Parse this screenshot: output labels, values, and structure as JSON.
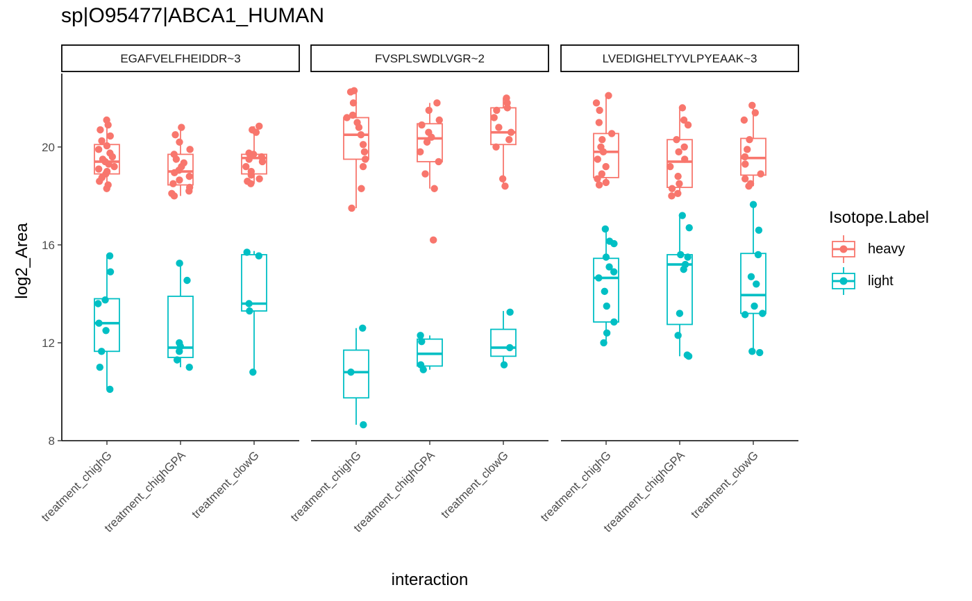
{
  "chart_data": {
    "type": "box",
    "title": "sp|O95477|ABCA1_HUMAN",
    "xlabel": "interaction",
    "ylabel": "log2_Area",
    "ylim": [
      8,
      23
    ],
    "yticks": [
      8,
      12,
      16,
      20
    ],
    "categories": [
      "treatment_chighG",
      "treatment_chighGPA",
      "treatment_clowG"
    ],
    "legend": {
      "title": "Isotope.Label",
      "position": "right",
      "items": [
        "heavy",
        "light"
      ]
    },
    "colors": {
      "heavy": "#F8766D",
      "light": "#00BFC4"
    },
    "panels": [
      {
        "name": "EGAFVELFHEIDDR~3",
        "series": [
          {
            "name": "heavy",
            "boxes": [
              {
                "min": 18.3,
                "q1": 18.9,
                "median": 19.4,
                "q3": 20.1,
                "max": 21.1,
                "points": [
                  18.3,
                  18.45,
                  18.6,
                  18.75,
                  18.9,
                  19.0,
                  19.1,
                  19.2,
                  19.3,
                  19.4,
                  19.5,
                  19.6,
                  19.75,
                  19.9,
                  20.05,
                  20.25,
                  20.45,
                  20.7,
                  20.9,
                  21.1
                ]
              },
              {
                "min": 18.0,
                "q1": 18.45,
                "median": 19.0,
                "q3": 19.7,
                "max": 20.8,
                "points": [
                  18.0,
                  18.1,
                  18.2,
                  18.35,
                  18.5,
                  18.65,
                  18.8,
                  18.95,
                  19.05,
                  19.2,
                  19.35,
                  19.5,
                  19.7,
                  19.9,
                  20.2,
                  20.5,
                  20.8
                ]
              },
              {
                "min": 18.5,
                "q1": 18.9,
                "median": 19.55,
                "q3": 19.7,
                "max": 20.85,
                "points": [
                  18.5,
                  18.6,
                  18.7,
                  18.85,
                  19.0,
                  19.2,
                  19.4,
                  19.5,
                  19.6,
                  19.7,
                  19.75,
                  20.6,
                  20.7,
                  20.85
                ]
              }
            ]
          },
          {
            "name": "light",
            "boxes": [
              {
                "min": 10.1,
                "q1": 11.65,
                "median": 12.8,
                "q3": 13.8,
                "max": 15.6,
                "points": [
                  10.1,
                  11.0,
                  11.65,
                  12.5,
                  12.8,
                  13.6,
                  13.75,
                  14.9,
                  15.55
                ]
              },
              {
                "min": 11.0,
                "q1": 11.4,
                "median": 11.8,
                "q3": 13.9,
                "max": 15.3,
                "points": [
                  11.0,
                  11.3,
                  11.65,
                  11.85,
                  12.0,
                  14.55,
                  15.25
                ]
              },
              {
                "min": 10.8,
                "q1": 13.3,
                "median": 13.6,
                "q3": 15.6,
                "max": 15.75,
                "points": [
                  10.8,
                  13.3,
                  13.6,
                  15.55,
                  15.7
                ]
              }
            ]
          }
        ]
      },
      {
        "name": "FVSPLSWDLVGR~2",
        "series": [
          {
            "name": "heavy",
            "boxes": [
              {
                "min": 17.5,
                "q1": 19.5,
                "median": 20.5,
                "q3": 21.2,
                "max": 22.3,
                "points": [
                  17.5,
                  18.3,
                  19.2,
                  19.5,
                  19.8,
                  20.1,
                  20.5,
                  20.8,
                  21.0,
                  21.2,
                  21.3,
                  21.8,
                  22.25,
                  22.3
                ]
              },
              {
                "min": 18.3,
                "q1": 19.4,
                "median": 20.35,
                "q3": 20.95,
                "max": 21.8,
                "points": [
                  16.2,
                  18.3,
                  18.9,
                  19.4,
                  19.8,
                  20.2,
                  20.4,
                  20.6,
                  20.9,
                  21.1,
                  21.5,
                  21.8
                ]
              },
              {
                "min": 18.4,
                "q1": 20.1,
                "median": 20.6,
                "q3": 21.6,
                "max": 22.0,
                "points": [
                  18.4,
                  18.7,
                  20.0,
                  20.3,
                  20.6,
                  20.8,
                  21.2,
                  21.5,
                  21.6,
                  21.8,
                  22.0
                ]
              }
            ]
          },
          {
            "name": "light",
            "boxes": [
              {
                "min": 8.65,
                "q1": 9.75,
                "median": 10.8,
                "q3": 11.7,
                "max": 12.6,
                "points": [
                  8.65,
                  10.8,
                  12.6
                ]
              },
              {
                "min": 10.9,
                "q1": 11.05,
                "median": 11.55,
                "q3": 12.15,
                "max": 12.3,
                "points": [
                  10.9,
                  11.1,
                  12.05,
                  12.3
                ]
              },
              {
                "min": 11.1,
                "q1": 11.45,
                "median": 11.8,
                "q3": 12.55,
                "max": 13.3,
                "points": [
                  11.1,
                  11.8,
                  13.25
                ]
              }
            ]
          }
        ]
      },
      {
        "name": "LVEDIGHELTYVLPYEAAK~3",
        "series": [
          {
            "name": "heavy",
            "boxes": [
              {
                "min": 18.45,
                "q1": 18.75,
                "median": 19.8,
                "q3": 20.55,
                "max": 22.1,
                "points": [
                  18.45,
                  18.55,
                  18.7,
                  18.9,
                  19.2,
                  19.5,
                  19.8,
                  20.0,
                  20.3,
                  20.55,
                  21.0,
                  21.5,
                  21.8,
                  22.1
                ]
              },
              {
                "min": 18.0,
                "q1": 18.35,
                "median": 19.4,
                "q3": 20.3,
                "max": 21.6,
                "points": [
                  18.0,
                  18.1,
                  18.3,
                  18.5,
                  18.8,
                  19.2,
                  19.5,
                  19.8,
                  20.0,
                  20.3,
                  20.9,
                  21.1,
                  21.6
                ]
              },
              {
                "min": 18.4,
                "q1": 18.85,
                "median": 19.55,
                "q3": 20.35,
                "max": 21.7,
                "points": [
                  18.4,
                  18.5,
                  18.7,
                  18.9,
                  19.3,
                  19.6,
                  19.9,
                  20.3,
                  21.1,
                  21.4,
                  21.7
                ]
              }
            ]
          },
          {
            "name": "light",
            "boxes": [
              {
                "min": 12.0,
                "q1": 12.85,
                "median": 14.65,
                "q3": 15.45,
                "max": 16.65,
                "points": [
                  12.0,
                  12.4,
                  12.85,
                  13.5,
                  14.1,
                  14.65,
                  14.9,
                  15.1,
                  15.5,
                  16.05,
                  16.15,
                  16.65
                ]
              },
              {
                "min": 11.45,
                "q1": 12.75,
                "median": 15.2,
                "q3": 15.6,
                "max": 17.25,
                "points": [
                  11.45,
                  11.5,
                  12.3,
                  13.2,
                  15.0,
                  15.2,
                  15.5,
                  15.6,
                  16.7,
                  17.2
                ]
              },
              {
                "min": 11.6,
                "q1": 13.2,
                "median": 13.95,
                "q3": 15.65,
                "max": 17.65,
                "points": [
                  11.6,
                  11.65,
                  13.15,
                  13.2,
                  13.5,
                  14.4,
                  14.7,
                  15.6,
                  16.6,
                  17.65
                ]
              }
            ]
          }
        ]
      }
    ]
  }
}
